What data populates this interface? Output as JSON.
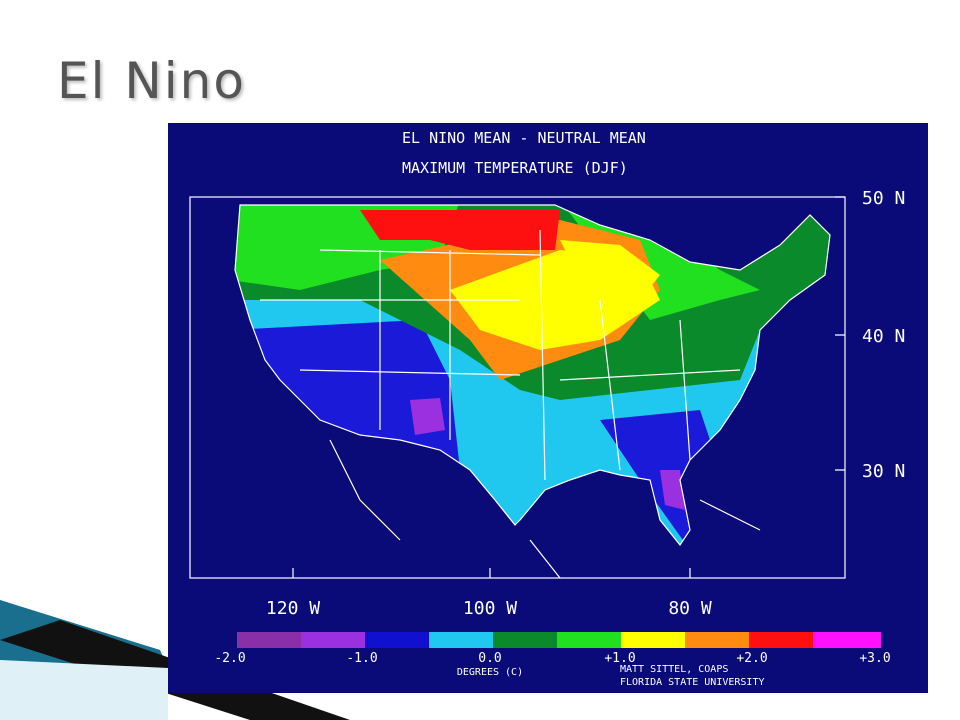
{
  "title": "El Nino",
  "map": {
    "title_lines": [
      "EL NINO MEAN - NEUTRAL MEAN",
      "MAXIMUM TEMPERATURE (DJF)"
    ],
    "lat_labels": [
      "50 N",
      "40 N",
      "30 N"
    ],
    "lon_labels": [
      "120 W",
      "100 W",
      "80 W"
    ],
    "colorbar_labels": [
      "-2.0",
      "-1.0",
      "0.0",
      "+1.0",
      "+2.0",
      "+3.0"
    ],
    "units": "DEGREES (C)",
    "credits": [
      "MATT SITTEL, COAPS",
      "FLORIDA STATE UNIVERSITY"
    ]
  }
}
